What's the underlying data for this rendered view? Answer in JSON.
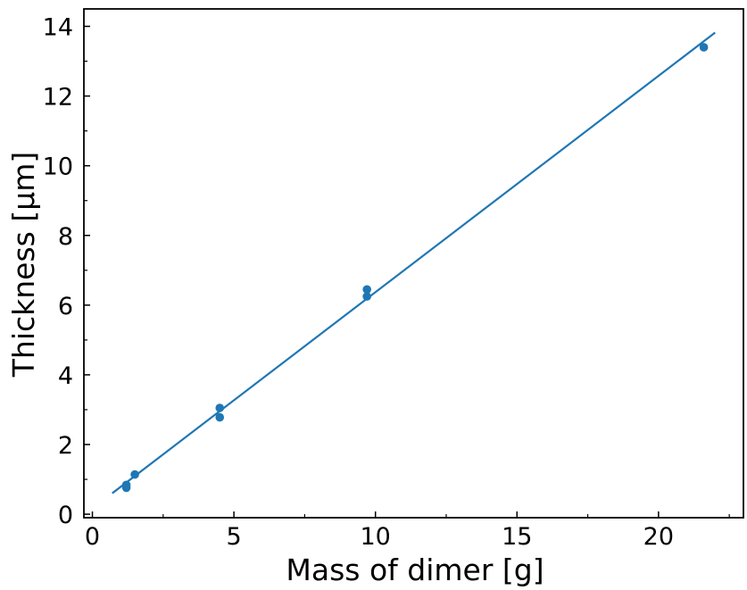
{
  "chart_data": {
    "type": "scatter",
    "title": "",
    "xlabel": "Mass of dimer [g]",
    "ylabel": "Thickness [µm]",
    "xlim": [
      -0.3,
      23.0
    ],
    "ylim": [
      -0.1,
      14.5
    ],
    "x_ticks": [
      0,
      5,
      10,
      15,
      20
    ],
    "y_ticks": [
      0,
      2,
      4,
      6,
      8,
      10,
      12,
      14
    ],
    "x_minor_ticks": [
      2.5,
      7.5,
      12.5,
      17.5,
      22.5
    ],
    "y_minor_ticks": [
      1,
      3,
      5,
      7,
      9,
      11,
      13
    ],
    "grid": false,
    "legend": null,
    "series": [
      {
        "type": "scatter",
        "color": "#1f77b4",
        "x": [
          1.2,
          1.2,
          1.5,
          4.5,
          4.5,
          9.7,
          9.7,
          21.6
        ],
        "y": [
          0.76,
          0.84,
          1.14,
          3.05,
          2.78,
          6.45,
          6.25,
          13.4
        ]
      },
      {
        "type": "line",
        "color": "#1f77b4",
        "x": [
          0.7,
          22.0
        ],
        "y": [
          0.6,
          13.82
        ]
      }
    ]
  }
}
